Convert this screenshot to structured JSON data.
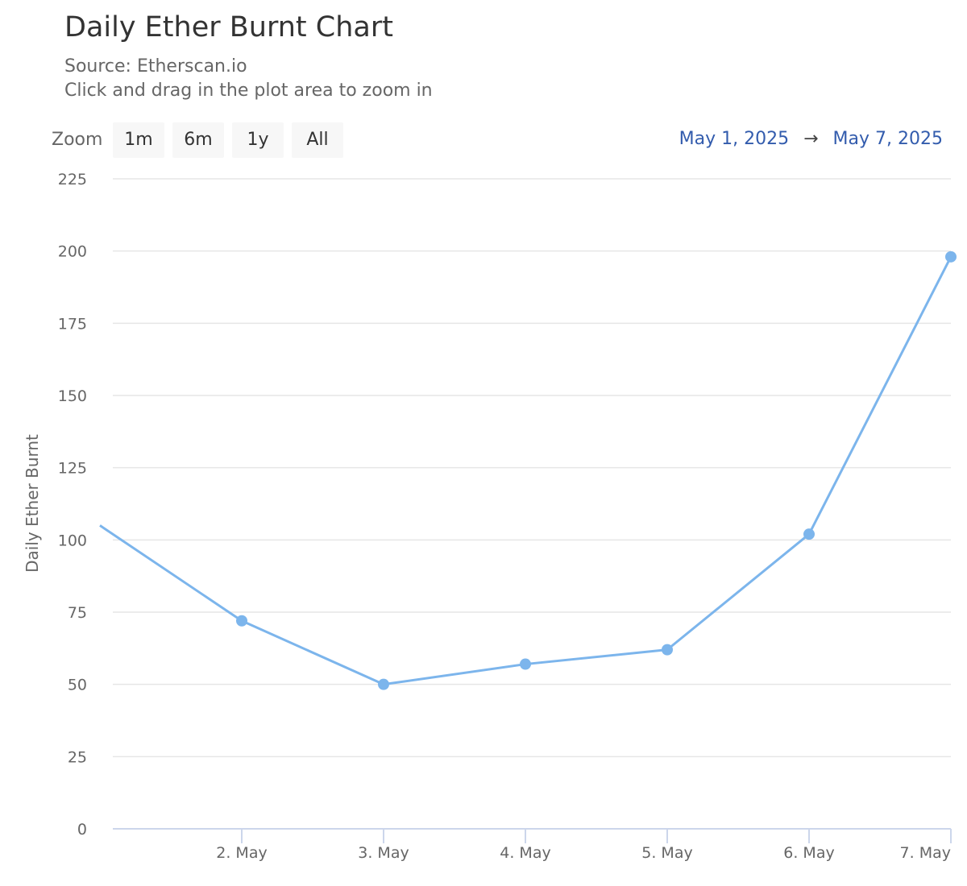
{
  "header": {
    "title": "Daily Ether Burnt Chart",
    "source": "Source: Etherscan.io",
    "hint": "Click and drag in the plot area to zoom in"
  },
  "zoom": {
    "label": "Zoom",
    "buttons": [
      "1m",
      "6m",
      "1y",
      "All"
    ]
  },
  "range": {
    "from": "May 1, 2025",
    "arrow": "→",
    "to": "May 7, 2025"
  },
  "colors": {
    "series": "#7cb5ec",
    "grid": "#e6e6e6",
    "axis": "#ccd6eb"
  },
  "chart_data": {
    "type": "line",
    "x": [
      "2025-05-01",
      "2025-05-02",
      "2025-05-03",
      "2025-05-04",
      "2025-05-05",
      "2025-05-06",
      "2025-05-07"
    ],
    "series": [
      {
        "values": [
          105,
          72,
          50,
          57,
          62,
          102,
          198
        ]
      }
    ],
    "x_tick_labels": [
      "2. May",
      "3. May",
      "4. May",
      "5. May",
      "6. May",
      "7. May"
    ],
    "y_ticks": [
      0,
      25,
      50,
      75,
      100,
      125,
      150,
      175,
      200,
      225
    ],
    "ylabel": "Daily Ether Burnt",
    "ylim": [
      0,
      225
    ],
    "grid": true,
    "legend": false
  }
}
